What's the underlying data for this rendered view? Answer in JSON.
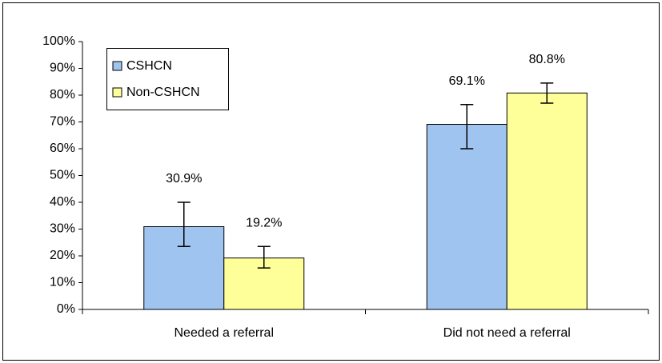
{
  "chart_data": {
    "type": "bar",
    "categories": [
      "Needed a referral",
      "Did not need a referral"
    ],
    "series": [
      {
        "name": "CSHCN",
        "color": "#a0c4f0",
        "values": [
          30.9,
          69.1
        ],
        "value_labels": [
          "30.9%",
          "69.1%"
        ],
        "ci_low": [
          23.5,
          60
        ],
        "ci_high": [
          40,
          76.5
        ]
      },
      {
        "name": "Non-CSHCN",
        "color": "#ffff99",
        "values": [
          19.2,
          80.8
        ],
        "value_labels": [
          "19.2%",
          "80.8%"
        ],
        "ci_low": [
          15.5,
          77
        ],
        "ci_high": [
          23.5,
          84.5
        ]
      }
    ],
    "ylim": [
      0,
      100
    ],
    "yticks": [
      {
        "value": 0,
        "label": "0%"
      },
      {
        "value": 10,
        "label": "10%"
      },
      {
        "value": 20,
        "label": "20%"
      },
      {
        "value": 30,
        "label": "30%"
      },
      {
        "value": 40,
        "label": "40%"
      },
      {
        "value": 50,
        "label": "50%"
      },
      {
        "value": 60,
        "label": "60%"
      },
      {
        "value": 70,
        "label": "70%"
      },
      {
        "value": 80,
        "label": "80%"
      },
      {
        "value": 90,
        "label": "90%"
      },
      {
        "value": 100,
        "label": "100%"
      }
    ],
    "legend": "upper left"
  }
}
